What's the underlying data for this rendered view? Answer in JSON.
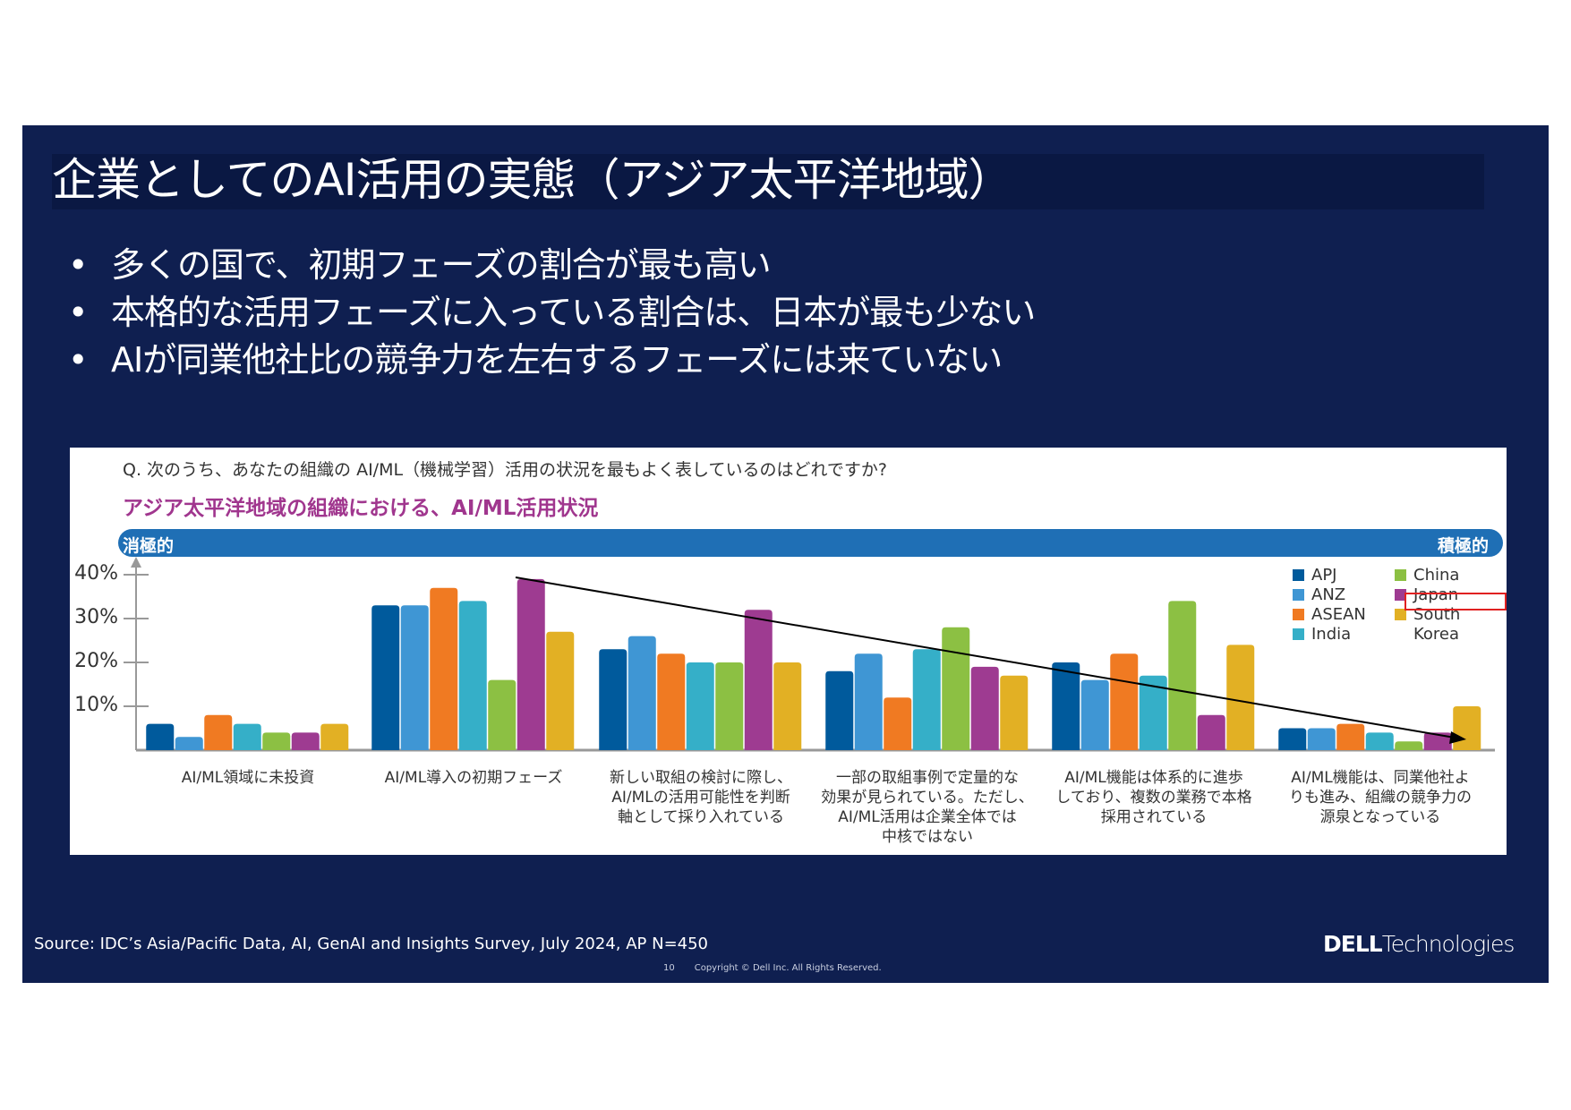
{
  "slide": {
    "title": "企業としてのAI活用の実態（アジア太平洋地域）",
    "bullets": [
      "多くの国で、初期フェーズの割合が最も高い",
      "本格的な活用フェーズに入っている割合は、日本が最も少ない",
      "AIが同業他社比の競争力を左右するフェーズには来ていない"
    ],
    "source": "Source: IDC’s Asia/Pacific Data, AI, GenAI and Insights Survey, July 2024, AP N=450",
    "page_number": "10",
    "copyright": "Copyright © Dell Inc. All Rights Reserved.",
    "logo_brand": "DELL",
    "logo_suffix": "Technologies"
  },
  "chart_data": {
    "type": "bar",
    "question": "Q. 次のうち、あなたの組織の AI/ML（機械学習）活用の状況を最もよく表しているのはどれですか?",
    "title": "アジア太平洋地域の組織における、AI/ML活用状況",
    "scale_left": "消極的",
    "scale_right": "積極的",
    "ylim": [
      0,
      40
    ],
    "yticks": [
      "40%",
      "30%",
      "20%",
      "10%"
    ],
    "ytick_values": [
      40,
      30,
      20,
      10
    ],
    "categories": [
      [
        "AI/ML領域に未投資"
      ],
      [
        "AI/ML導入の初期フェーズ"
      ],
      [
        "新しい取組の検討に際し、",
        "AI/MLの活用可能性を判断",
        "軸として採り入れている"
      ],
      [
        "一部の取組事例で定量的な",
        "効果が見られている。ただし、",
        "AI/ML活用は企業全体では",
        "中核ではない"
      ],
      [
        "AI/ML機能は体系的に進歩",
        "しており、複数の業務で本格",
        "採用されている"
      ],
      [
        "AI/ML機能は、同業他社よ",
        "りも進み、組織の競争力の",
        "源泉となっている"
      ]
    ],
    "series": [
      {
        "name": "APJ",
        "color": "#005a9c",
        "values": [
          6,
          33,
          23,
          18,
          20,
          5
        ]
      },
      {
        "name": "ANZ",
        "color": "#3f96d4",
        "values": [
          3,
          33,
          26,
          22,
          16,
          5
        ]
      },
      {
        "name": "ASEAN",
        "color": "#f07a22",
        "values": [
          8,
          37,
          22,
          12,
          22,
          6
        ]
      },
      {
        "name": "India",
        "color": "#35afc8",
        "values": [
          6,
          34,
          20,
          23,
          17,
          4
        ]
      },
      {
        "name": "China",
        "color": "#8cc043",
        "values": [
          4,
          16,
          20,
          28,
          34,
          2
        ]
      },
      {
        "name": "Japan",
        "color": "#9e3b91",
        "values": [
          4,
          39,
          32,
          19,
          8,
          4
        ]
      },
      {
        "name": "South Korea",
        "color": "#e2b024",
        "values": [
          6,
          27,
          20,
          17,
          24,
          10
        ]
      }
    ],
    "legend_position": "top-right",
    "annotation": "downward trend arrow from initial phase peak to competitive-advantage phase"
  }
}
